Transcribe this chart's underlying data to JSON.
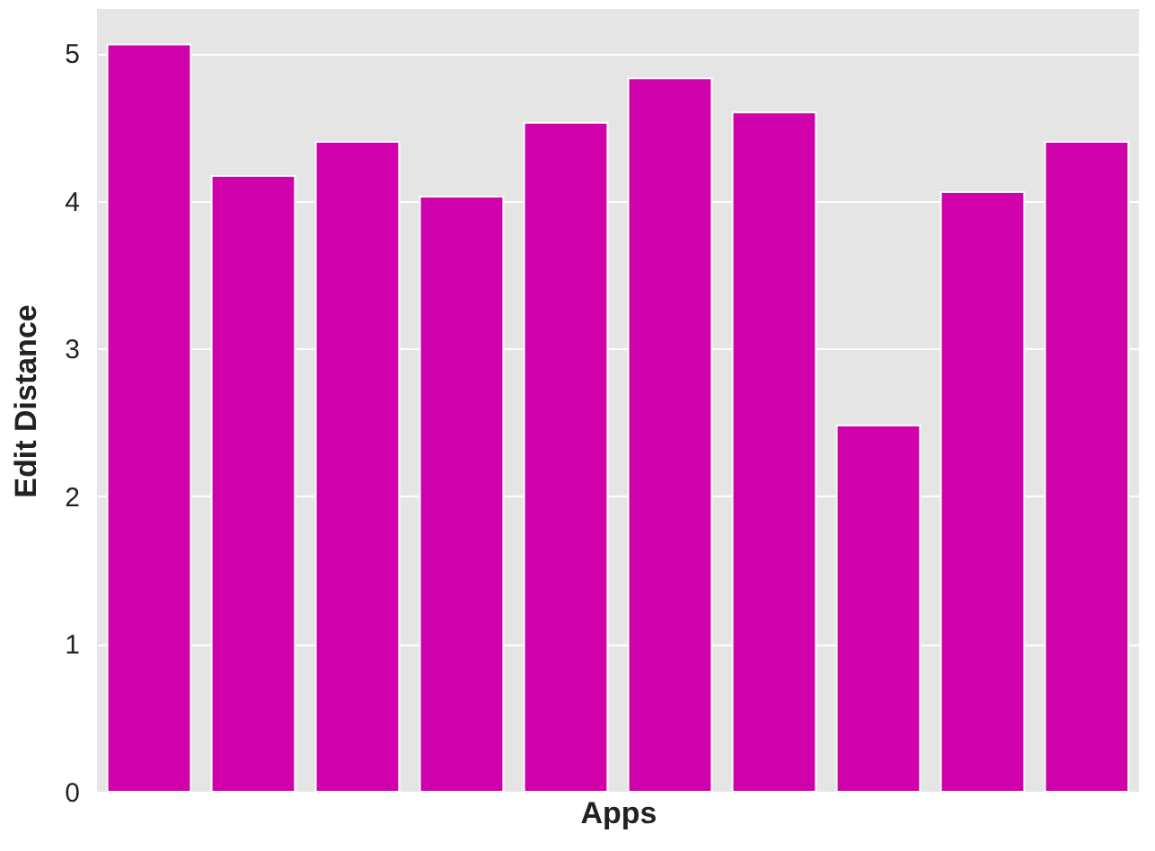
{
  "chart_data": {
    "type": "bar",
    "xlabel": "Apps",
    "ylabel": "Edit Distance",
    "categories": [
      null,
      null,
      null,
      null,
      null,
      null,
      null,
      null,
      null,
      null
    ],
    "values": [
      5.06,
      4.17,
      4.4,
      4.03,
      4.53,
      4.83,
      4.6,
      2.48,
      4.06,
      4.4
    ],
    "color": "#d000aa",
    "ylim": [
      0,
      5.3
    ],
    "yticks": [
      0,
      1,
      2,
      3,
      4,
      5
    ],
    "grid": "y",
    "tick_labels": "y"
  }
}
